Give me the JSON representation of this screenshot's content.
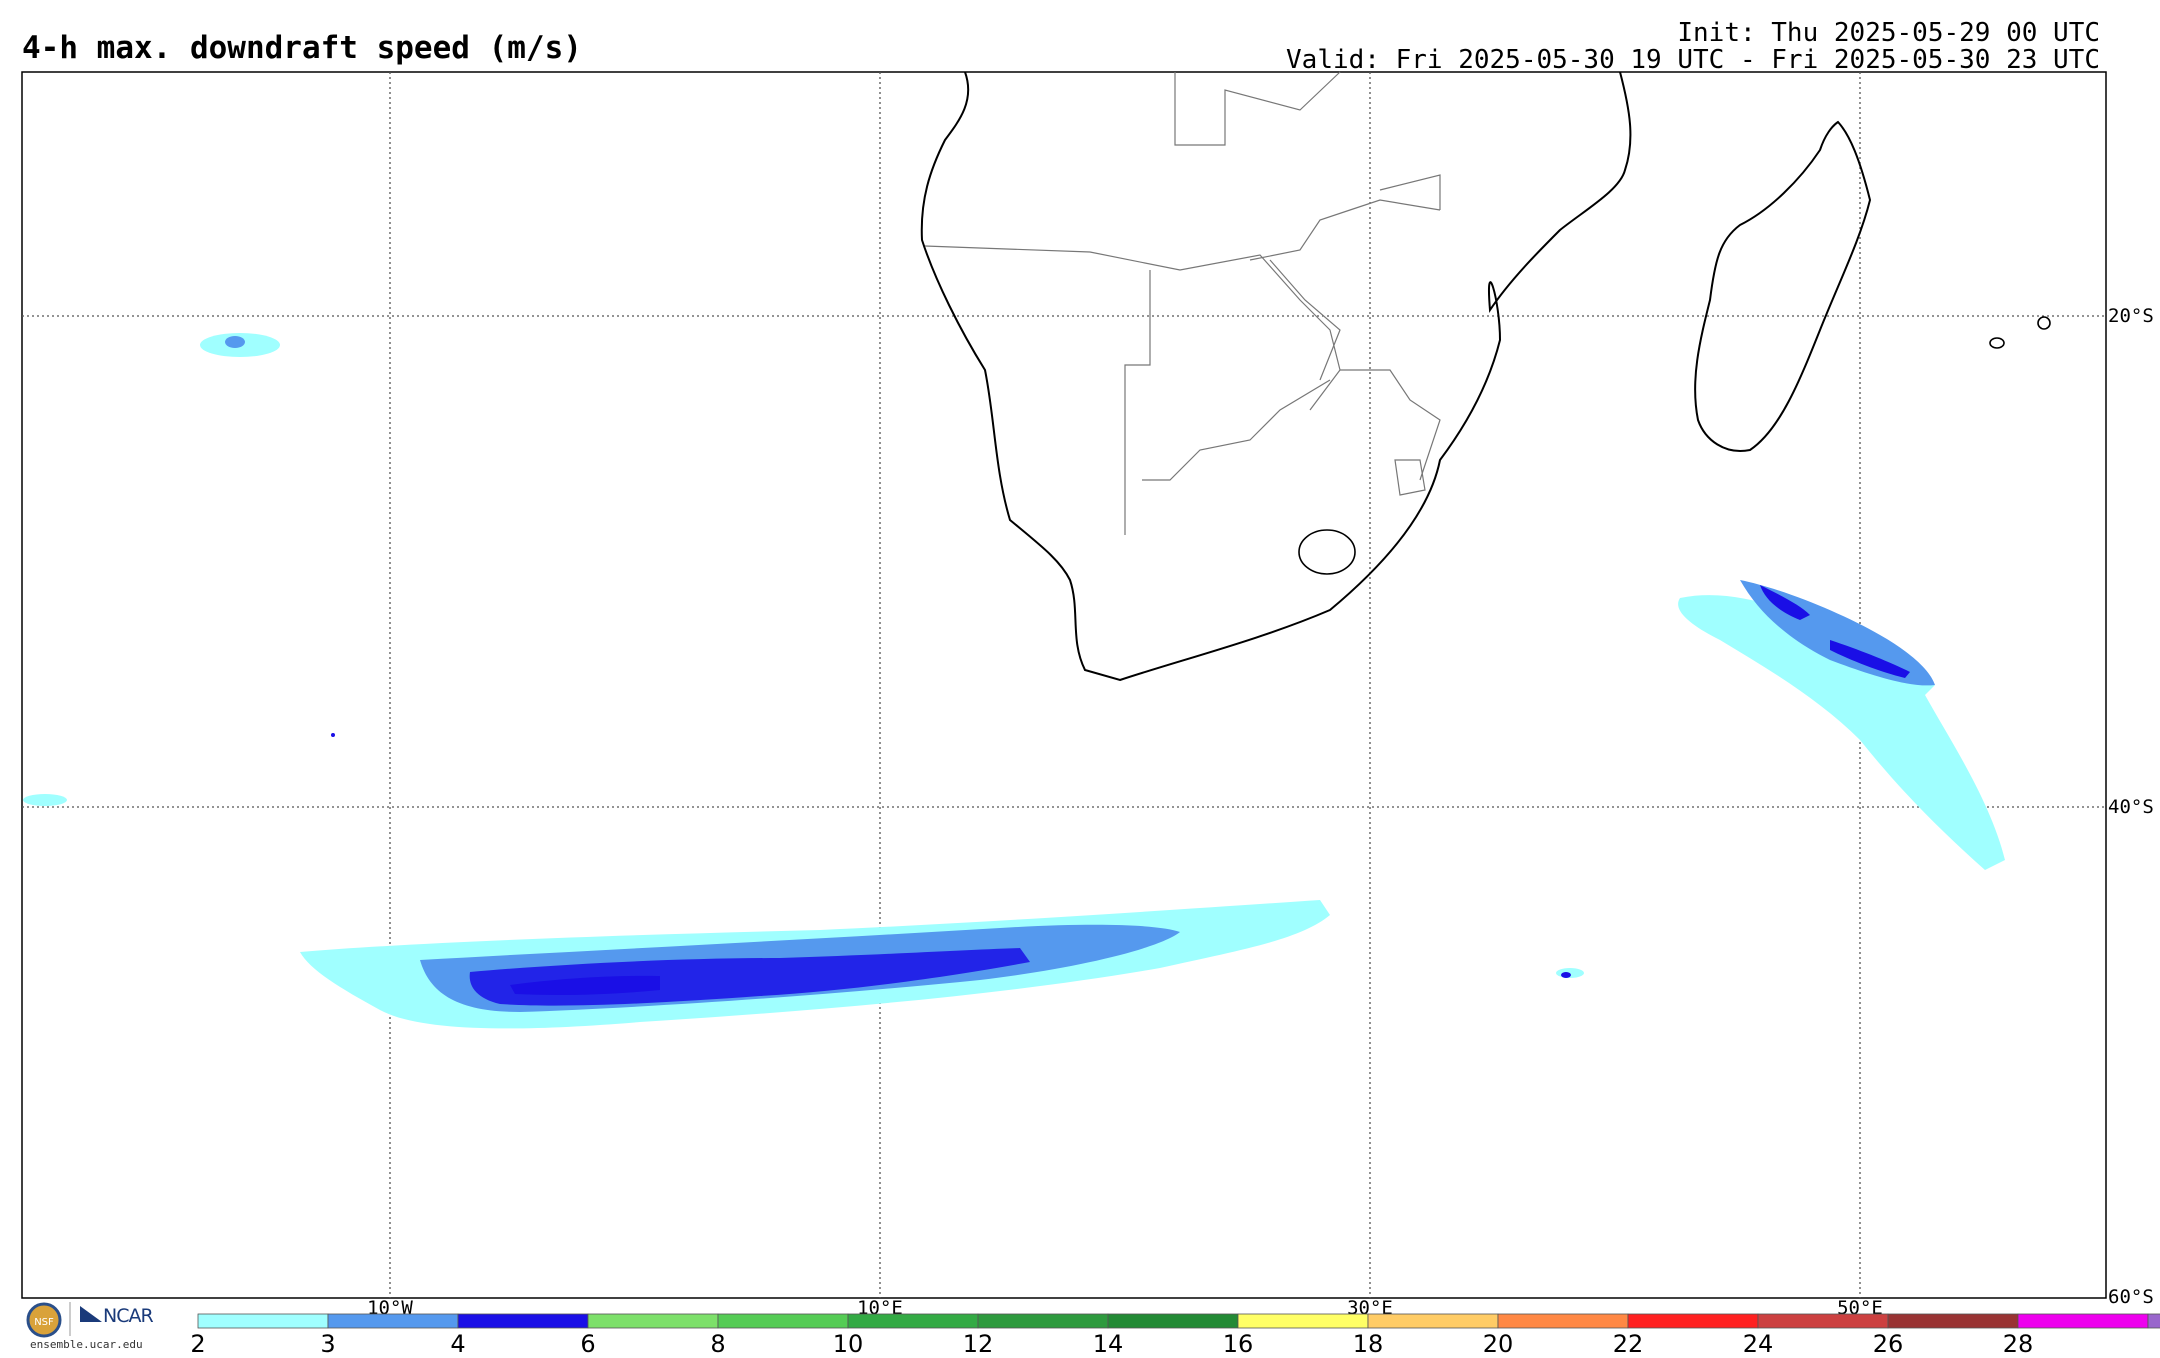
{
  "title": "4-h max. downdraft speed (m/s)",
  "init": "Init: Thu 2025-05-29 00 UTC",
  "valid": "Valid: Fri 2025-05-30 19 UTC - Fri 2025-05-30 23 UTC",
  "latitude_labels": [
    "20°S",
    "40°S",
    "60°S"
  ],
  "longitude_labels": [
    "10°W",
    "10°E",
    "30°E",
    "50°E"
  ],
  "logo": {
    "org": "NCAR",
    "seal_text": "NSF",
    "url": "ensemble.ucar.edu"
  },
  "colorbar": {
    "ticks": [
      "2",
      "3",
      "4",
      "6",
      "8",
      "10",
      "12",
      "14",
      "16",
      "18",
      "20",
      "22",
      "24",
      "26",
      "28"
    ],
    "colors": [
      "#a0ffff",
      "#5599ee",
      "#1a0fe6",
      "#7de06a",
      "#55cc55",
      "#33aa44",
      "#2e9a3e",
      "#238a35",
      "#ffff66",
      "#ffcc66",
      "#ff8844",
      "#ff2020",
      "#cc4040",
      "#993333",
      "#ee00ee",
      "#9966cc"
    ]
  },
  "features": {
    "coastlines": "Southern Africa and Madagascar",
    "shaded_regions": [
      "South Atlantic band near 45°S",
      "Southern Indian Ocean band near 35°S-42°S"
    ]
  }
}
